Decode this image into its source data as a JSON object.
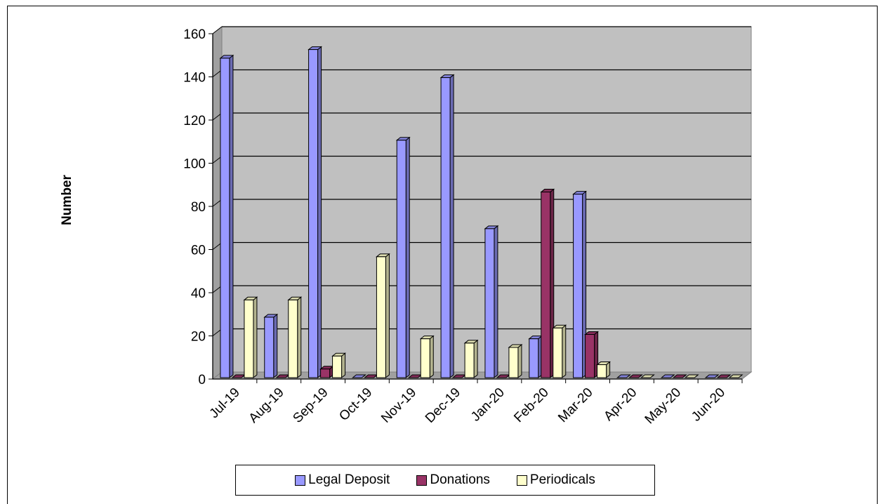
{
  "chart_data": {
    "type": "bar",
    "categories": [
      "Jul-19",
      "Aug-19",
      "Sep-19",
      "Oct-19",
      "Nov-19",
      "Dec-19",
      "Jan-20",
      "Feb-20",
      "Mar-20",
      "Apr-20",
      "May-20",
      "Jun-20"
    ],
    "series": [
      {
        "name": "Legal Deposit",
        "color": "#9999ff",
        "values": [
          148,
          28,
          152,
          0,
          110,
          139,
          69,
          18,
          85,
          0,
          0,
          0
        ]
      },
      {
        "name": "Donations",
        "color": "#993366",
        "values": [
          0,
          0,
          4,
          0,
          0,
          0,
          0,
          86,
          20,
          0,
          0,
          0
        ]
      },
      {
        "name": "Periodicals",
        "color": "#ffffcc",
        "values": [
          36,
          36,
          10,
          56,
          18,
          16,
          14,
          23,
          6,
          0,
          0,
          0
        ]
      }
    ],
    "ylabel": "Number",
    "xlabel": "",
    "ylim": [
      0,
      160
    ],
    "yticks": [
      0,
      20,
      40,
      60,
      80,
      100,
      120,
      140,
      160
    ],
    "grid": true,
    "legend_position": "bottom",
    "wall_color": "#c0c0c0"
  }
}
